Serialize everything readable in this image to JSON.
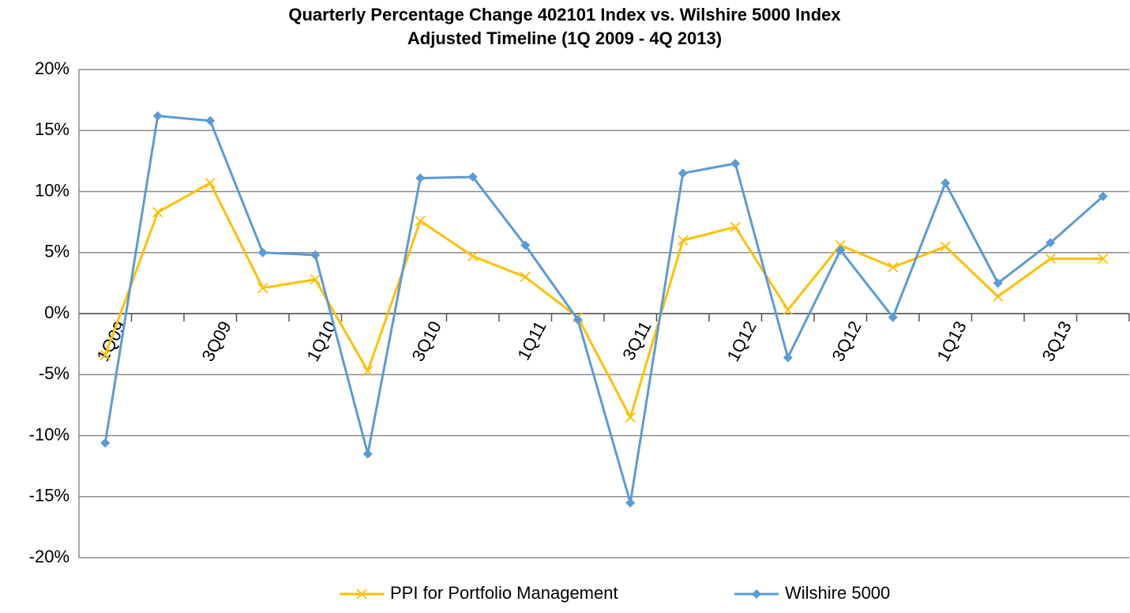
{
  "chart_data": {
    "type": "line",
    "title": "Quarterly Percentage Change 402101 Index vs. Wilshire 5000 Index",
    "subtitle": "Adjusted Timeline (1Q 2009 - 4Q 2013)",
    "categories": [
      "1Q09",
      null,
      "3Q09",
      null,
      "1Q10",
      null,
      "3Q10",
      null,
      "1Q11",
      null,
      "3Q11",
      null,
      "1Q12",
      null,
      "3Q12",
      null,
      "1Q13",
      null,
      "3Q13",
      null
    ],
    "series": [
      {
        "name": "PPI for Portfolio Management",
        "color": "#ffc000",
        "marker": "x",
        "values": [
          -3.4,
          8.3,
          10.7,
          2.1,
          2.8,
          -4.7,
          7.6,
          4.7,
          3.0,
          -0.3,
          -8.5,
          6.0,
          7.1,
          0.3,
          5.6,
          3.8,
          5.5,
          1.4,
          4.5,
          4.5
        ]
      },
      {
        "name": "Wilshire 5000",
        "color": "#5b9bd5",
        "marker": "diamond",
        "values": [
          -10.6,
          16.2,
          15.8,
          5.0,
          4.8,
          -11.5,
          11.1,
          11.2,
          5.6,
          -0.5,
          -15.5,
          11.5,
          12.3,
          -3.6,
          5.2,
          -0.3,
          10.7,
          2.5,
          5.8,
          9.6
        ]
      }
    ],
    "ylim": [
      -20,
      20
    ],
    "yticks": [
      {
        "value": -20,
        "label": "-20%"
      },
      {
        "value": -15,
        "label": "-15%"
      },
      {
        "value": -10,
        "label": "-10%"
      },
      {
        "value": -5,
        "label": "-5%"
      },
      {
        "value": 0,
        "label": "0%"
      },
      {
        "value": 5,
        "label": "5%"
      },
      {
        "value": 10,
        "label": "10%"
      },
      {
        "value": 15,
        "label": "15%"
      },
      {
        "value": 20,
        "label": "20%"
      }
    ],
    "grid": true,
    "legend": "bottom"
  }
}
